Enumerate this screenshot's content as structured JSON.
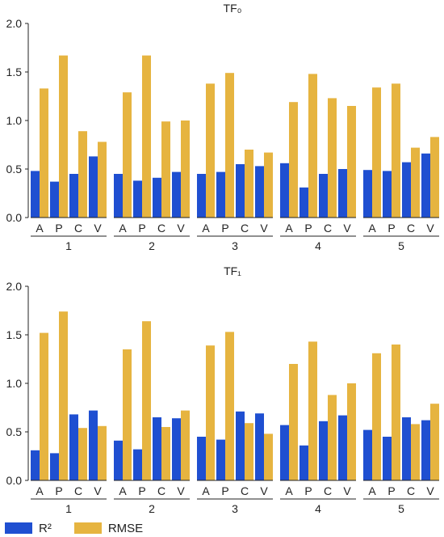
{
  "chart_data": [
    {
      "type": "bar",
      "title": "TF₀",
      "ylim": [
        0,
        2.0
      ],
      "yticks": [
        "0.0",
        "0.5",
        "1.0",
        "1.5",
        "2.0"
      ],
      "groups": [
        "1",
        "2",
        "3",
        "4",
        "5"
      ],
      "categories": [
        "A",
        "P",
        "C",
        "V"
      ],
      "grid": false,
      "series": [
        {
          "name": "R²",
          "color": "#1f4fd1",
          "values": [
            [
              0.48,
              0.37,
              0.45,
              0.63
            ],
            [
              0.45,
              0.38,
              0.41,
              0.47
            ],
            [
              0.45,
              0.47,
              0.55,
              0.53
            ],
            [
              0.56,
              0.31,
              0.45,
              0.5
            ],
            [
              0.49,
              0.48,
              0.57,
              0.66
            ]
          ]
        },
        {
          "name": "RMSE",
          "color": "#e6b440",
          "values": [
            [
              1.33,
              1.67,
              0.89,
              0.78
            ],
            [
              1.29,
              1.67,
              0.99,
              1.0
            ],
            [
              1.38,
              1.49,
              0.7,
              0.67
            ],
            [
              1.19,
              1.48,
              1.23,
              1.15
            ],
            [
              1.34,
              1.38,
              0.72,
              0.83
            ]
          ]
        }
      ]
    },
    {
      "type": "bar",
      "title": "TF₁",
      "ylim": [
        0,
        2.0
      ],
      "yticks": [
        "0.0",
        "0.5",
        "1.0",
        "1.5",
        "2.0"
      ],
      "groups": [
        "1",
        "2",
        "3",
        "4",
        "5"
      ],
      "categories": [
        "A",
        "P",
        "C",
        "V"
      ],
      "grid": false,
      "series": [
        {
          "name": "R²",
          "color": "#1f4fd1",
          "values": [
            [
              0.31,
              0.28,
              0.68,
              0.72
            ],
            [
              0.41,
              0.32,
              0.65,
              0.64
            ],
            [
              0.45,
              0.42,
              0.71,
              0.69
            ],
            [
              0.57,
              0.36,
              0.61,
              0.67
            ],
            [
              0.52,
              0.45,
              0.65,
              0.62
            ]
          ]
        },
        {
          "name": "RMSE",
          "color": "#e6b440",
          "values": [
            [
              1.52,
              1.74,
              0.54,
              0.56
            ],
            [
              1.35,
              1.64,
              0.55,
              0.72
            ],
            [
              1.39,
              1.53,
              0.59,
              0.48
            ],
            [
              1.2,
              1.43,
              0.88,
              1.0
            ],
            [
              1.31,
              1.4,
              0.58,
              0.79
            ]
          ]
        }
      ]
    }
  ],
  "legend": {
    "position": "bottom-left",
    "items": [
      {
        "label": "R²",
        "color": "#1f4fd1"
      },
      {
        "label": "RMSE",
        "color": "#e6b440"
      }
    ]
  }
}
